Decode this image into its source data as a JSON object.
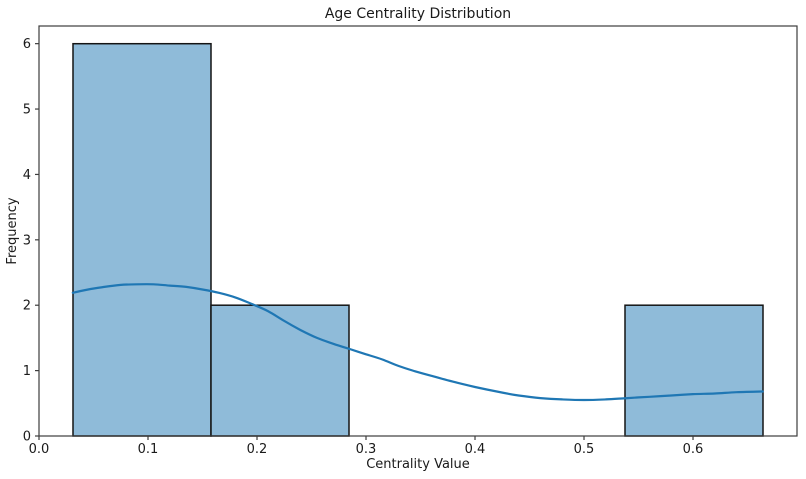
{
  "chart_data": {
    "type": "histogram",
    "title": "Age Centrality Distribution",
    "xlabel": "Centrality Value",
    "ylabel": "Frequency",
    "xlim": [
      0.0,
      0.6954
    ],
    "ylim": [
      0,
      6.27
    ],
    "grid": false,
    "legend": false,
    "bins": {
      "edges": [
        0.0312,
        0.1578,
        0.2844,
        0.411,
        0.5376,
        0.6642
      ],
      "frequencies": [
        6,
        2,
        0,
        0,
        2
      ]
    },
    "kde": {
      "x": [
        0.031,
        0.045,
        0.06,
        0.075,
        0.09,
        0.105,
        0.12,
        0.135,
        0.15,
        0.165,
        0.18,
        0.195,
        0.21,
        0.225,
        0.24,
        0.255,
        0.27,
        0.285,
        0.3,
        0.315,
        0.33,
        0.345,
        0.36,
        0.38,
        0.4,
        0.42,
        0.44,
        0.46,
        0.48,
        0.5,
        0.52,
        0.54,
        0.56,
        0.58,
        0.6,
        0.62,
        0.64,
        0.664
      ],
      "y": [
        2.19,
        2.24,
        2.28,
        2.31,
        2.32,
        2.32,
        2.3,
        2.28,
        2.24,
        2.19,
        2.12,
        2.02,
        1.91,
        1.76,
        1.62,
        1.5,
        1.41,
        1.33,
        1.25,
        1.17,
        1.07,
        0.99,
        0.92,
        0.83,
        0.75,
        0.68,
        0.62,
        0.58,
        0.56,
        0.55,
        0.56,
        0.58,
        0.6,
        0.62,
        0.64,
        0.65,
        0.67,
        0.68
      ]
    },
    "xticks": {
      "values": [
        0.0,
        0.1,
        0.2,
        0.3,
        0.4,
        0.5,
        0.6
      ],
      "labels": [
        "0.0",
        "0.1",
        "0.2",
        "0.3",
        "0.4",
        "0.5",
        "0.6"
      ]
    },
    "yticks": {
      "values": [
        0,
        1,
        2,
        3,
        4,
        5,
        6
      ],
      "labels": [
        "0",
        "1",
        "2",
        "3",
        "4",
        "5",
        "6"
      ]
    },
    "colors": {
      "bar_fill": "#8FBBD9",
      "bar_edge": "#141414",
      "kde_line": "#1F77B4",
      "spine": "#3d3d3d",
      "text": "#1a1a1a",
      "background": "#ffffff"
    }
  }
}
